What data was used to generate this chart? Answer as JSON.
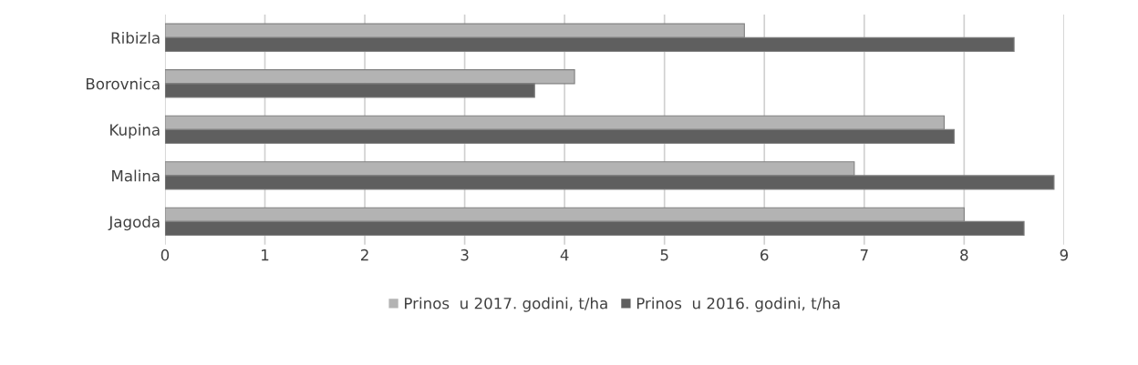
{
  "chart_data": {
    "type": "bar",
    "orientation": "horizontal",
    "categories": [
      "Ribizla",
      "Borovnica",
      "Kupina",
      "Malina",
      "Jagoda"
    ],
    "series": [
      {
        "name": "Prinos  u 2017. godini, t/ha",
        "color": "#b3b3b3",
        "values": [
          5.8,
          4.1,
          7.8,
          6.9,
          8.0
        ]
      },
      {
        "name": "Prinos  u 2016. godini, t/ha",
        "color": "#5f5f5f",
        "values": [
          8.5,
          3.7,
          7.9,
          8.9,
          8.6
        ]
      }
    ],
    "xlim": [
      0,
      9
    ],
    "xticks": [
      0,
      1,
      2,
      3,
      4,
      5,
      6,
      7,
      8,
      9
    ],
    "grid": "x",
    "legend": "bottom"
  }
}
